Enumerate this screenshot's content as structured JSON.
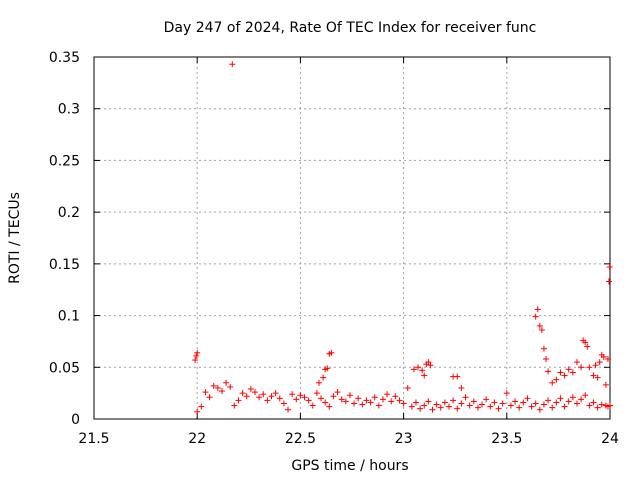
{
  "chart_data": {
    "type": "scatter",
    "title": "Day 247 of 2024, Rate Of TEC Index for receiver func",
    "xlabel": "GPS time / hours",
    "ylabel": "ROTI / TECUs",
    "xlim": [
      21.5,
      24
    ],
    "ylim": [
      0,
      0.35
    ],
    "x_ticks": [
      21.5,
      22,
      22.5,
      23,
      23.5,
      24
    ],
    "x_tick_labels": [
      "21.5",
      "22",
      "22.5",
      "23",
      "23.5",
      "24"
    ],
    "y_ticks": [
      0,
      0.05,
      0.1,
      0.15,
      0.2,
      0.25,
      0.3,
      0.35
    ],
    "y_tick_labels": [
      "0",
      "0.05",
      "0.1",
      "0.15",
      "0.2",
      "0.25",
      "0.3",
      "0.35"
    ],
    "grid": true,
    "marker": "+",
    "color": "#ff0000",
    "series": [
      {
        "points": [
          [
            21.99,
            0.057
          ],
          [
            21.995,
            0.061
          ],
          [
            22.0,
            0.064
          ],
          [
            22.17,
            0.343
          ],
          [
            22.59,
            0.035
          ],
          [
            22.61,
            0.04
          ],
          [
            22.62,
            0.048
          ],
          [
            22.63,
            0.049
          ],
          [
            22.64,
            0.063
          ],
          [
            22.65,
            0.064
          ],
          [
            23.05,
            0.048
          ],
          [
            23.07,
            0.05
          ],
          [
            23.09,
            0.047
          ],
          [
            23.11,
            0.053
          ],
          [
            23.12,
            0.055
          ],
          [
            23.13,
            0.052
          ],
          [
            23.1,
            0.042
          ],
          [
            23.24,
            0.041
          ],
          [
            23.26,
            0.041
          ],
          [
            23.28,
            0.03
          ],
          [
            23.64,
            0.099
          ],
          [
            23.65,
            0.106
          ],
          [
            23.66,
            0.09
          ],
          [
            23.67,
            0.086
          ],
          [
            23.68,
            0.068
          ],
          [
            23.69,
            0.058
          ],
          [
            23.7,
            0.046
          ],
          [
            23.72,
            0.035
          ],
          [
            23.74,
            0.038
          ],
          [
            23.76,
            0.045
          ],
          [
            23.78,
            0.042
          ],
          [
            23.8,
            0.048
          ],
          [
            23.82,
            0.045
          ],
          [
            23.84,
            0.055
          ],
          [
            23.86,
            0.05
          ],
          [
            23.87,
            0.076
          ],
          [
            23.88,
            0.074
          ],
          [
            23.89,
            0.07
          ],
          [
            23.9,
            0.05
          ],
          [
            23.92,
            0.042
          ],
          [
            23.93,
            0.052
          ],
          [
            23.94,
            0.04
          ],
          [
            23.95,
            0.055
          ],
          [
            23.96,
            0.062
          ],
          [
            23.97,
            0.06
          ],
          [
            23.98,
            0.033
          ],
          [
            23.99,
            0.058
          ],
          [
            23.995,
            0.133
          ],
          [
            23.998,
            0.147
          ],
          [
            22.0,
            0.007
          ],
          [
            22.02,
            0.012
          ],
          [
            22.04,
            0.026
          ],
          [
            22.06,
            0.021
          ],
          [
            22.08,
            0.032
          ],
          [
            22.1,
            0.03
          ],
          [
            22.12,
            0.027
          ],
          [
            22.14,
            0.035
          ],
          [
            22.16,
            0.031
          ],
          [
            22.18,
            0.013
          ],
          [
            22.2,
            0.018
          ],
          [
            22.22,
            0.025
          ],
          [
            22.24,
            0.022
          ],
          [
            22.26,
            0.029
          ],
          [
            22.28,
            0.026
          ],
          [
            22.3,
            0.021
          ],
          [
            22.32,
            0.024
          ],
          [
            22.34,
            0.018
          ],
          [
            22.36,
            0.022
          ],
          [
            22.38,
            0.025
          ],
          [
            22.4,
            0.02
          ],
          [
            22.42,
            0.015
          ],
          [
            22.44,
            0.009
          ],
          [
            22.46,
            0.024
          ],
          [
            22.48,
            0.019
          ],
          [
            22.5,
            0.023
          ],
          [
            22.52,
            0.021
          ],
          [
            22.54,
            0.018
          ],
          [
            22.56,
            0.013
          ],
          [
            22.58,
            0.025
          ],
          [
            22.6,
            0.02
          ],
          [
            22.62,
            0.016
          ],
          [
            22.64,
            0.012
          ],
          [
            22.66,
            0.022
          ],
          [
            22.68,
            0.026
          ],
          [
            22.7,
            0.019
          ],
          [
            22.72,
            0.017
          ],
          [
            22.74,
            0.023
          ],
          [
            22.76,
            0.015
          ],
          [
            22.78,
            0.02
          ],
          [
            22.8,
            0.014
          ],
          [
            22.82,
            0.018
          ],
          [
            22.84,
            0.016
          ],
          [
            22.86,
            0.021
          ],
          [
            22.88,
            0.013
          ],
          [
            22.9,
            0.019
          ],
          [
            22.92,
            0.024
          ],
          [
            22.94,
            0.017
          ],
          [
            22.96,
            0.022
          ],
          [
            22.98,
            0.018
          ],
          [
            23.0,
            0.015
          ],
          [
            23.02,
            0.03
          ],
          [
            23.04,
            0.012
          ],
          [
            23.06,
            0.016
          ],
          [
            23.08,
            0.01
          ],
          [
            23.1,
            0.013
          ],
          [
            23.12,
            0.017
          ],
          [
            23.14,
            0.009
          ],
          [
            23.16,
            0.014
          ],
          [
            23.18,
            0.011
          ],
          [
            23.2,
            0.016
          ],
          [
            23.22,
            0.012
          ],
          [
            23.24,
            0.018
          ],
          [
            23.26,
            0.01
          ],
          [
            23.28,
            0.015
          ],
          [
            23.3,
            0.021
          ],
          [
            23.32,
            0.013
          ],
          [
            23.34,
            0.017
          ],
          [
            23.36,
            0.011
          ],
          [
            23.38,
            0.014
          ],
          [
            23.4,
            0.019
          ],
          [
            23.42,
            0.012
          ],
          [
            23.44,
            0.016
          ],
          [
            23.46,
            0.01
          ],
          [
            23.48,
            0.015
          ],
          [
            23.5,
            0.025
          ],
          [
            23.52,
            0.013
          ],
          [
            23.54,
            0.017
          ],
          [
            23.56,
            0.011
          ],
          [
            23.58,
            0.016
          ],
          [
            23.6,
            0.02
          ],
          [
            23.62,
            0.012
          ],
          [
            23.64,
            0.015
          ],
          [
            23.66,
            0.009
          ],
          [
            23.68,
            0.014
          ],
          [
            23.7,
            0.018
          ],
          [
            23.72,
            0.011
          ],
          [
            23.74,
            0.016
          ],
          [
            23.76,
            0.02
          ],
          [
            23.78,
            0.012
          ],
          [
            23.8,
            0.017
          ],
          [
            23.82,
            0.021
          ],
          [
            23.84,
            0.015
          ],
          [
            23.86,
            0.019
          ],
          [
            23.88,
            0.023
          ],
          [
            23.9,
            0.013
          ],
          [
            23.92,
            0.016
          ],
          [
            23.94,
            0.011
          ],
          [
            23.96,
            0.014
          ],
          [
            23.98,
            0.013
          ],
          [
            23.99,
            0.012
          ],
          [
            24.0,
            0.013
          ]
        ]
      }
    ]
  }
}
